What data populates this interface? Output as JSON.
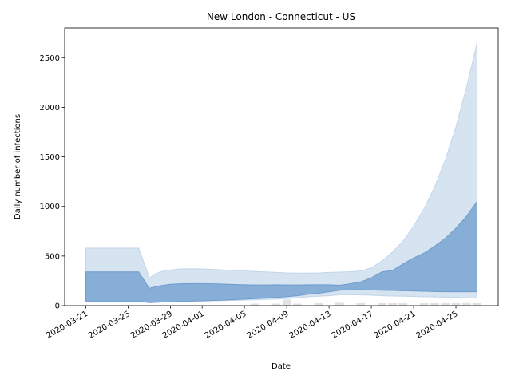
{
  "chart_data": {
    "type": "area",
    "title": "New London - Connecticut - US",
    "xlabel": "Date",
    "ylabel": "Daily number of infections",
    "x": [
      "2020-03-21",
      "2020-03-22",
      "2020-03-23",
      "2020-03-24",
      "2020-03-25",
      "2020-03-26",
      "2020-03-27",
      "2020-03-28",
      "2020-03-29",
      "2020-03-30",
      "2020-03-31",
      "2020-04-01",
      "2020-04-02",
      "2020-04-03",
      "2020-04-04",
      "2020-04-05",
      "2020-04-06",
      "2020-04-07",
      "2020-04-08",
      "2020-04-09",
      "2020-04-10",
      "2020-04-11",
      "2020-04-12",
      "2020-04-13",
      "2020-04-14",
      "2020-04-15",
      "2020-04-16",
      "2020-04-17",
      "2020-04-18",
      "2020-04-19",
      "2020-04-20",
      "2020-04-21",
      "2020-04-22",
      "2020-04-23",
      "2020-04-24",
      "2020-04-25",
      "2020-04-26",
      "2020-04-27"
    ],
    "xlim": [
      "2020-03-19",
      "2020-04-29"
    ],
    "xticks": [
      "2020-03-21",
      "2020-03-25",
      "2020-03-29",
      "2020-04-01",
      "2020-04-05",
      "2020-04-09",
      "2020-04-13",
      "2020-04-17",
      "2020-04-21",
      "2020-04-25"
    ],
    "ylim": [
      0,
      2800
    ],
    "yticks": [
      0,
      500,
      1000,
      1500,
      2000,
      2500
    ],
    "series": [
      {
        "type": "bar",
        "color": "#d9d9d9",
        "values": [
          0,
          0,
          0,
          0,
          0,
          0,
          0,
          0,
          0,
          0,
          0,
          0,
          0,
          0,
          0,
          0,
          20,
          0,
          20,
          60,
          20,
          0,
          25,
          0,
          30,
          0,
          25,
          0,
          25,
          25,
          25,
          0,
          25,
          25,
          25,
          25,
          25,
          25
        ]
      },
      {
        "type": "band",
        "color": "#d6e3f0",
        "edge": "#c3d6ea",
        "upper": [
          579,
          579,
          579,
          579,
          579,
          579,
          281,
          340,
          360,
          370,
          372,
          370,
          365,
          360,
          355,
          350,
          345,
          340,
          335,
          330,
          328,
          328,
          330,
          335,
          338,
          342,
          350,
          380,
          450,
          540,
          650,
          800,
          980,
          1200,
          1470,
          1800,
          2200,
          2650
        ],
        "lower": [
          45,
          45,
          45,
          45,
          45,
          45,
          30,
          35,
          38,
          42,
          45,
          45,
          48,
          50,
          52,
          55,
          58,
          62,
          66,
          70,
          78,
          88,
          95,
          100,
          110,
          110,
          108,
          105,
          100,
          97,
          95,
          92,
          90,
          88,
          85,
          82,
          78,
          75
        ]
      },
      {
        "type": "band",
        "color": "#86aed6",
        "edge": "#6f9ccc",
        "upper": [
          340,
          340,
          340,
          340,
          340,
          340,
          175,
          200,
          215,
          220,
          222,
          222,
          220,
          217,
          213,
          210,
          208,
          208,
          210,
          208,
          208,
          210,
          210,
          210,
          205,
          220,
          240,
          280,
          340,
          355,
          420,
          480,
          530,
          600,
          680,
          780,
          900,
          1050
        ],
        "lower": [
          45,
          45,
          45,
          45,
          45,
          45,
          30,
          35,
          38,
          42,
          45,
          48,
          52,
          55,
          60,
          65,
          70,
          75,
          82,
          90,
          100,
          115,
          125,
          140,
          155,
          160,
          160,
          158,
          155,
          153,
          150,
          148,
          145,
          142,
          140,
          140,
          140,
          140
        ]
      }
    ]
  }
}
